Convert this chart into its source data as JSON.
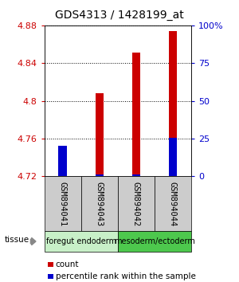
{
  "title": "GDS4313 / 1428199_at",
  "samples": [
    "GSM894041",
    "GSM894043",
    "GSM894042",
    "GSM894044"
  ],
  "count_values": [
    4.752,
    4.808,
    4.851,
    4.874
  ],
  "percentile_values": [
    4.752,
    4.722,
    4.722,
    4.761
  ],
  "ylim": [
    4.72,
    4.88
  ],
  "yticks": [
    4.72,
    4.76,
    4.8,
    4.84,
    4.88
  ],
  "right_yticks": [
    0,
    25,
    50,
    75,
    100
  ],
  "groups": [
    {
      "label": "foregut endoderm",
      "samples": [
        0,
        1
      ],
      "color": "#C8F0C8"
    },
    {
      "label": "mesoderm/ectoderm",
      "samples": [
        2,
        3
      ],
      "color": "#4DC84D"
    }
  ],
  "count_color": "#CC0000",
  "percentile_color": "#0000CC",
  "left_tick_color": "#CC0000",
  "right_tick_color": "#0000CC",
  "title_fontsize": 10,
  "tick_fontsize": 8,
  "sample_label_fontsize": 7.5,
  "group_label_fontsize": 7,
  "legend_fontsize": 7.5,
  "sample_box_color": "#CCCCCC",
  "tissue_label": "tissue"
}
